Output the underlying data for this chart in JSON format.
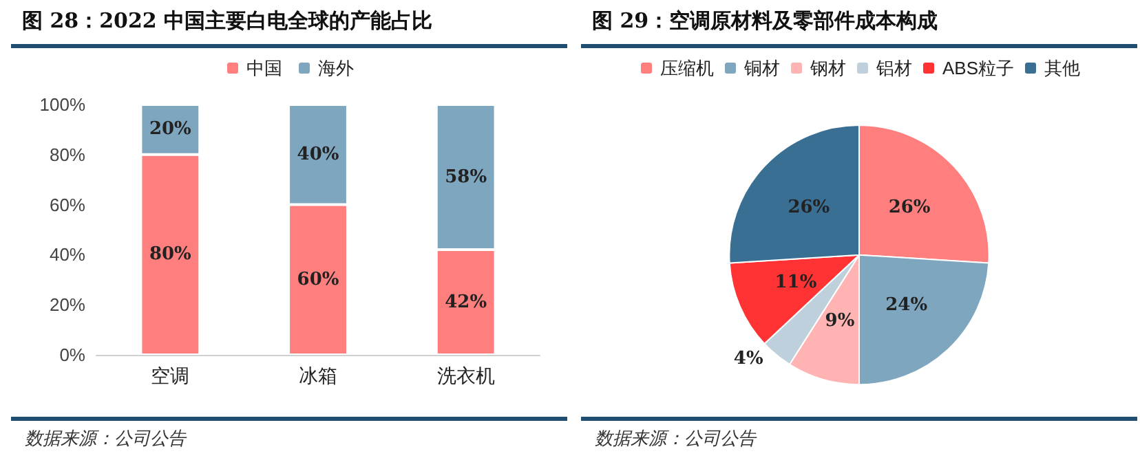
{
  "chart_data": [
    {
      "type": "bar",
      "title": "图 28：2022 中国主要白电全球的产能占比",
      "categories": [
        "空调",
        "冰箱",
        "洗衣机"
      ],
      "stacked": true,
      "series": [
        {
          "name": "中国",
          "color": "#ff7f7f",
          "values": [
            80,
            60,
            42
          ],
          "value_labels": [
            "80%",
            "60%",
            "42%"
          ]
        },
        {
          "name": "海外",
          "color": "#7fa6bf",
          "values": [
            20,
            40,
            58
          ],
          "value_labels": [
            "20%",
            "40%",
            "58%"
          ]
        }
      ],
      "ylim": [
        0,
        100
      ],
      "yticks": [
        {
          "value": 0,
          "label": "0%"
        },
        {
          "value": 20,
          "label": "20%"
        },
        {
          "value": 40,
          "label": "40%"
        },
        {
          "value": 60,
          "label": "60%"
        },
        {
          "value": 80,
          "label": "80%"
        },
        {
          "value": 100,
          "label": "100%"
        }
      ],
      "grid": false,
      "legend": "top",
      "annotations": [
        "数据来源：公司公告"
      ]
    },
    {
      "type": "pie",
      "title": "图 29：空调原材料及零部件成本构成",
      "categories": [
        "压缩机",
        "铜材",
        "钢材",
        "铝材",
        "ABS粒子",
        "其他"
      ],
      "values": [
        26,
        24,
        9,
        4,
        11,
        26
      ],
      "value_labels": [
        "26%",
        "24%",
        "9%",
        "4%",
        "11%",
        "26%"
      ],
      "colors": [
        "#ff7f7f",
        "#7fa6bf",
        "#ffb3b3",
        "#bfd0dd",
        "#ff3333",
        "#3a6f94"
      ],
      "legend": "top",
      "annotations": [
        "数据来源：公司公告"
      ]
    }
  ]
}
